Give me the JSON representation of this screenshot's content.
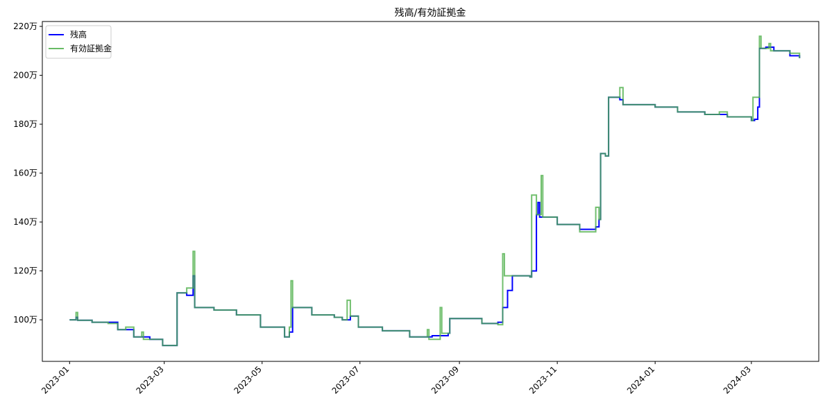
{
  "chart_data": {
    "type": "line",
    "title": "残高/有効証拠金",
    "xlabel": "",
    "ylabel": "",
    "ylim": [
      83,
      222
    ],
    "xlim": [
      "2022-12-15",
      "2024-04-12"
    ],
    "yticks": [
      100,
      120,
      140,
      160,
      180,
      200,
      220
    ],
    "ytick_labels": [
      "100万",
      "120万",
      "140万",
      "160万",
      "180万",
      "200万",
      "220万"
    ],
    "xticks": [
      "2023-01-01",
      "2023-03-01",
      "2023-05-01",
      "2023-07-01",
      "2023-09-01",
      "2023-11-01",
      "2024-01-01",
      "2024-03-01"
    ],
    "xtick_labels": [
      "2023-01",
      "2023-03",
      "2023-05",
      "2023-07",
      "2023-09",
      "2023-11",
      "2024-01",
      "2024-03"
    ],
    "grid": false,
    "legend_position": "top-left",
    "series": [
      {
        "name": "残高",
        "color": "#0000ff",
        "points": [
          [
            "2023-01-01",
            100
          ],
          [
            "2023-01-05",
            101
          ],
          [
            "2023-01-06",
            99.8
          ],
          [
            "2023-01-15",
            99
          ],
          [
            "2023-01-31",
            96
          ],
          [
            "2023-02-10",
            93
          ],
          [
            "2023-02-20",
            92
          ],
          [
            "2023-02-28",
            89.5
          ],
          [
            "2023-03-08",
            89.5
          ],
          [
            "2023-03-09",
            111
          ],
          [
            "2023-03-15",
            110
          ],
          [
            "2023-03-19",
            118
          ],
          [
            "2023-03-20",
            105
          ],
          [
            "2023-04-01",
            104
          ],
          [
            "2023-04-15",
            102
          ],
          [
            "2023-04-30",
            97
          ],
          [
            "2023-05-15",
            93
          ],
          [
            "2023-05-18",
            95
          ],
          [
            "2023-05-20",
            105
          ],
          [
            "2023-06-01",
            102
          ],
          [
            "2023-06-15",
            101
          ],
          [
            "2023-06-20",
            100
          ],
          [
            "2023-06-25",
            101.5
          ],
          [
            "2023-06-30",
            97
          ],
          [
            "2023-07-15",
            95.5
          ],
          [
            "2023-08-01",
            93
          ],
          [
            "2023-08-15",
            93.5
          ],
          [
            "2023-08-25",
            94.5
          ],
          [
            "2023-08-26",
            100.5
          ],
          [
            "2023-09-15",
            98.5
          ],
          [
            "2023-09-25",
            99
          ],
          [
            "2023-09-28",
            105
          ],
          [
            "2023-10-01",
            112
          ],
          [
            "2023-10-04",
            118
          ],
          [
            "2023-10-15",
            117.5
          ],
          [
            "2023-10-16",
            120
          ],
          [
            "2023-10-19",
            143
          ],
          [
            "2023-10-20",
            148
          ],
          [
            "2023-10-21",
            142
          ],
          [
            "2023-11-01",
            139
          ],
          [
            "2023-11-15",
            137
          ],
          [
            "2023-11-25",
            138
          ],
          [
            "2023-11-27",
            141
          ],
          [
            "2023-11-28",
            168
          ],
          [
            "2023-12-01",
            167
          ],
          [
            "2023-12-03",
            191
          ],
          [
            "2023-12-10",
            190
          ],
          [
            "2023-12-12",
            188
          ],
          [
            "2024-01-01",
            187
          ],
          [
            "2024-01-15",
            185
          ],
          [
            "2024-02-01",
            184
          ],
          [
            "2024-02-15",
            183
          ],
          [
            "2024-03-01",
            181.5
          ],
          [
            "2024-03-03",
            182
          ],
          [
            "2024-03-05",
            187
          ],
          [
            "2024-03-06",
            211
          ],
          [
            "2024-03-10",
            211.5
          ],
          [
            "2024-03-15",
            210
          ],
          [
            "2024-03-25",
            208
          ],
          [
            "2024-03-31",
            207
          ]
        ]
      },
      {
        "name": "有効証拠金",
        "color": "#4daf4a",
        "points": [
          [
            "2023-01-01",
            100
          ],
          [
            "2023-01-05",
            103
          ],
          [
            "2023-01-06",
            99.8
          ],
          [
            "2023-01-15",
            99
          ],
          [
            "2023-01-25",
            98.5
          ],
          [
            "2023-01-31",
            96
          ],
          [
            "2023-02-05",
            97
          ],
          [
            "2023-02-10",
            93
          ],
          [
            "2023-02-15",
            95
          ],
          [
            "2023-02-16",
            92
          ],
          [
            "2023-02-28",
            89.5
          ],
          [
            "2023-03-08",
            89.5
          ],
          [
            "2023-03-09",
            111
          ],
          [
            "2023-03-15",
            113
          ],
          [
            "2023-03-19",
            128
          ],
          [
            "2023-03-20",
            105
          ],
          [
            "2023-04-01",
            104
          ],
          [
            "2023-04-13",
            104
          ],
          [
            "2023-04-15",
            102
          ],
          [
            "2023-04-30",
            97
          ],
          [
            "2023-05-15",
            93
          ],
          [
            "2023-05-18",
            97
          ],
          [
            "2023-05-19",
            116
          ],
          [
            "2023-05-20",
            105
          ],
          [
            "2023-06-01",
            102
          ],
          [
            "2023-06-15",
            101
          ],
          [
            "2023-06-20",
            100
          ],
          [
            "2023-06-23",
            108
          ],
          [
            "2023-06-25",
            101.5
          ],
          [
            "2023-06-30",
            97
          ],
          [
            "2023-07-15",
            95.5
          ],
          [
            "2023-08-01",
            93
          ],
          [
            "2023-08-12",
            96
          ],
          [
            "2023-08-13",
            92
          ],
          [
            "2023-08-20",
            105
          ],
          [
            "2023-08-21",
            94.5
          ],
          [
            "2023-08-26",
            100.5
          ],
          [
            "2023-09-15",
            98.5
          ],
          [
            "2023-09-25",
            98
          ],
          [
            "2023-09-28",
            127
          ],
          [
            "2023-09-29",
            118
          ],
          [
            "2023-10-15",
            117.5
          ],
          [
            "2023-10-16",
            151
          ],
          [
            "2023-10-19",
            143
          ],
          [
            "2023-10-22",
            159
          ],
          [
            "2023-10-23",
            142
          ],
          [
            "2023-11-01",
            139
          ],
          [
            "2023-11-15",
            136
          ],
          [
            "2023-11-25",
            146
          ],
          [
            "2023-11-27",
            141
          ],
          [
            "2023-11-28",
            168
          ],
          [
            "2023-12-01",
            167
          ],
          [
            "2023-12-03",
            191
          ],
          [
            "2023-12-10",
            195
          ],
          [
            "2023-12-12",
            188
          ],
          [
            "2024-01-01",
            187
          ],
          [
            "2024-01-15",
            185
          ],
          [
            "2024-02-01",
            184
          ],
          [
            "2024-02-10",
            185
          ],
          [
            "2024-02-15",
            183
          ],
          [
            "2024-03-01",
            181.5
          ],
          [
            "2024-03-02",
            191
          ],
          [
            "2024-03-05",
            191
          ],
          [
            "2024-03-06",
            216
          ],
          [
            "2024-03-07",
            211
          ],
          [
            "2024-03-12",
            213
          ],
          [
            "2024-03-13",
            210
          ],
          [
            "2024-03-25",
            209
          ],
          [
            "2024-03-31",
            207
          ]
        ]
      }
    ]
  }
}
